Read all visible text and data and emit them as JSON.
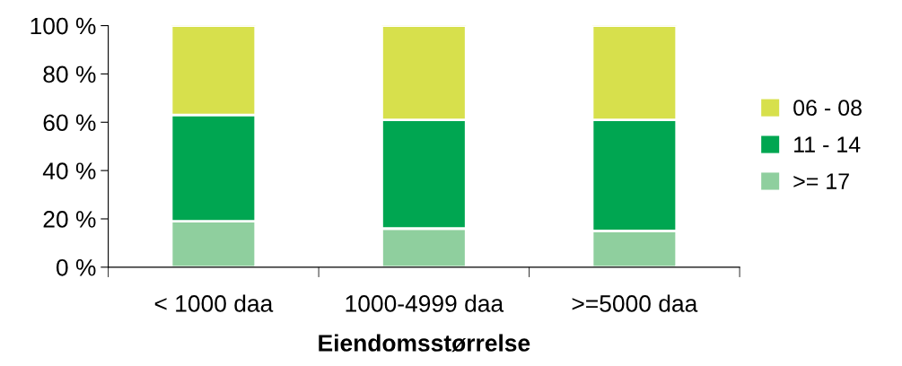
{
  "chart_data": {
    "type": "bar",
    "stacked": true,
    "xlabel": "Eiendomsstørrelse",
    "categories": [
      "< 1000 daa",
      "1000-4999 daa",
      ">=5000 daa"
    ],
    "series": [
      {
        "name": ">= 17",
        "color": "#8fcf9e",
        "values": [
          19,
          16,
          15
        ]
      },
      {
        "name": "11 - 14",
        "color": "#00a651",
        "values": [
          44,
          45,
          46
        ]
      },
      {
        "name": "06 - 08",
        "color": "#d7e04c",
        "values": [
          37,
          39,
          39
        ]
      }
    ],
    "ylim": [
      0,
      100
    ],
    "yticks": [
      {
        "value": 0,
        "label": "0 %"
      },
      {
        "value": 20,
        "label": "20 %"
      },
      {
        "value": 40,
        "label": "40 %"
      },
      {
        "value": 60,
        "label": "60 %"
      },
      {
        "value": 80,
        "label": "80 %"
      },
      {
        "value": 100,
        "label": "100 %"
      }
    ],
    "grid": false,
    "legend": "right"
  }
}
